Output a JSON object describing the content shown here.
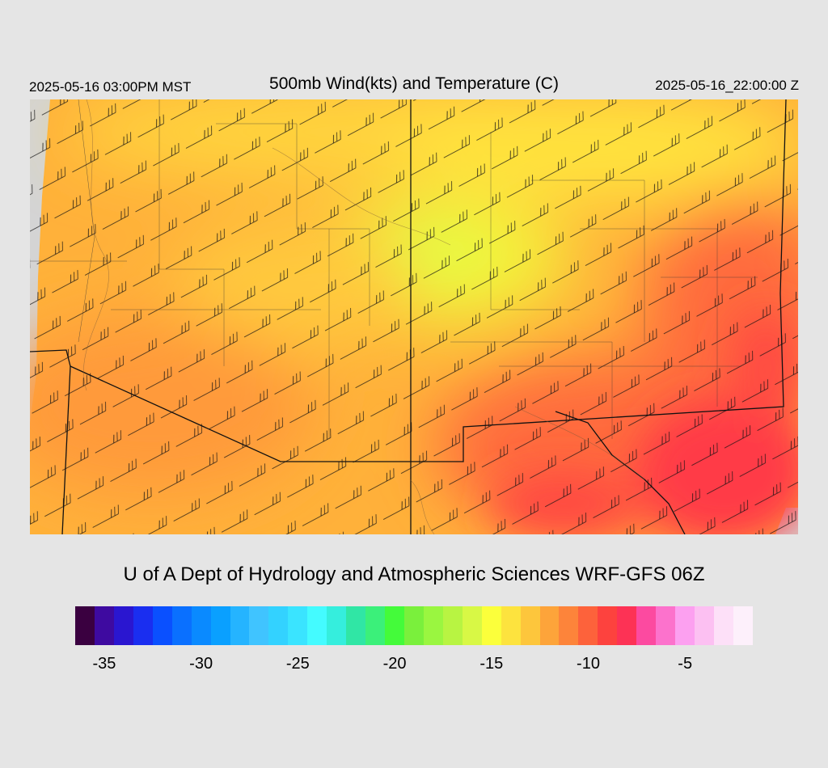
{
  "header": {
    "left_time": "2025-05-16 03:00PM MST",
    "title": "500mb Wind(kts) and Temperature (C)",
    "right_time": "2025-05-16_22:00:00 Z"
  },
  "credit": "U of A Dept of Hydrology and Atmospheric Sciences WRF-GFS 06Z",
  "colorbar": {
    "colors": [
      "#3a0040",
      "#3e0aa0",
      "#2a16d0",
      "#1a2ef0",
      "#0a50ff",
      "#0a70ff",
      "#0a8aff",
      "#0aa0ff",
      "#25b4ff",
      "#40c4ff",
      "#33d2ff",
      "#3ae4ff",
      "#44fbff",
      "#35eedd",
      "#30e6a5",
      "#3bf07a",
      "#44fb3a",
      "#7af03c",
      "#9af640",
      "#b8f442",
      "#d8f845",
      "#fbff3b",
      "#fde33e",
      "#fdc63c",
      "#fda43a",
      "#fd843a",
      "#fd623b",
      "#fd423e",
      "#fd3255",
      "#fc4aa0",
      "#fc72cc",
      "#fca0f0",
      "#fcc0f2",
      "#fde0f8",
      "#fdf0fb"
    ],
    "tick_labels": [
      "-35",
      "-30",
      "-25",
      "-20",
      "-15",
      "-10",
      "-5"
    ],
    "tick_values": [
      -35,
      -30,
      -25,
      -20,
      -15,
      -10,
      -5
    ],
    "range": [
      -36,
      -1
    ]
  },
  "map": {
    "temperature_colors": {
      "coldest_shown": "#ddff44",
      "cool": "#fff13a",
      "mild": "#ffd13c",
      "warm": "#ffab3a",
      "warmer": "#ff8a3a",
      "hot": "#ff5a3e",
      "hottest": "#ff3a46"
    },
    "no_data_color": "#d4d4d4"
  }
}
